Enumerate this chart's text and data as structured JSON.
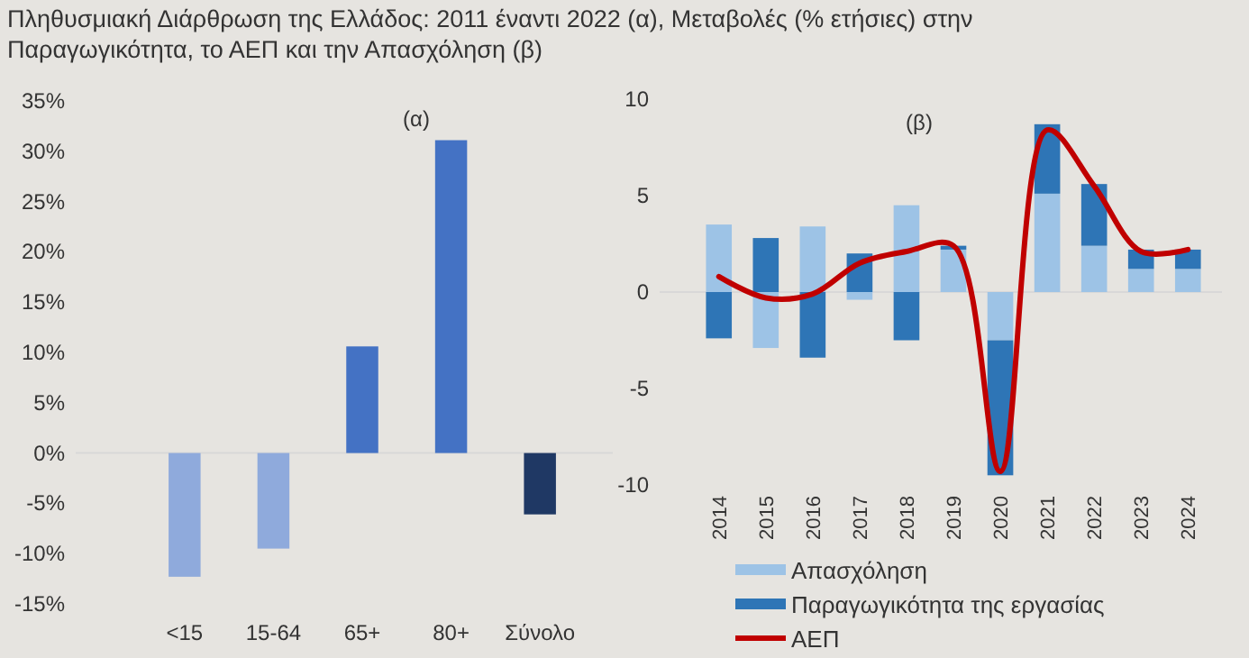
{
  "chart_data": [
    {
      "type": "bar",
      "title": "Πληθυσμιακή Διάρθρωση της Ελλάδος: 2011  έναντι 2022 (α), Μεταβολές (% ετήσιες) στην Παραγωγικότητα, το ΑΕΠ και την Απασχόληση (β)",
      "annotations": [
        "(α)"
      ],
      "categories": [
        "<15",
        "15-64",
        "65+",
        "80+",
        "Σύνολο"
      ],
      "values": [
        -12.3,
        -9.5,
        10.6,
        31.1,
        -6.1
      ],
      "colors": [
        "#8faadc",
        "#8faadc",
        "#4472c4",
        "#4472c4",
        "#1f3864"
      ],
      "ylim": [
        -15,
        35
      ],
      "yticks": [
        {
          "value": -15,
          "label": "-15%"
        },
        {
          "value": -10,
          "label": "-10%"
        },
        {
          "value": -5,
          "label": "-5%"
        },
        {
          "value": 0,
          "label": "0%"
        },
        {
          "value": 5,
          "label": "5%"
        },
        {
          "value": 10,
          "label": "10%"
        },
        {
          "value": 15,
          "label": "15%"
        },
        {
          "value": 20,
          "label": "20%"
        },
        {
          "value": 25,
          "label": "25%"
        },
        {
          "value": 30,
          "label": "30%"
        },
        {
          "value": 35,
          "label": "35%"
        }
      ],
      "legend": false
    },
    {
      "type": "bar",
      "stacked": true,
      "annotations": [
        "(β)"
      ],
      "categories": [
        "2014",
        "2015",
        "2016",
        "2017",
        "2018",
        "2019",
        "2020",
        "2021",
        "2022",
        "2023",
        "2024"
      ],
      "series": [
        {
          "name": "Απασχόληση",
          "color": "#9dc3e6",
          "values": [
            3.5,
            -2.9,
            3.4,
            -0.4,
            4.5,
            2.2,
            -2.5,
            5.1,
            2.4,
            1.2,
            1.2
          ]
        },
        {
          "name": "Παραγωγικότητα της εργασίας",
          "color": "#2e75b6",
          "values": [
            -2.4,
            2.8,
            -3.4,
            2.0,
            -2.5,
            0.2,
            -7.0,
            3.6,
            3.2,
            1.0,
            1.0
          ]
        },
        {
          "name": "ΑΕΠ",
          "type": "line",
          "color": "#c00000",
          "values": [
            0.8,
            -0.3,
            -0.1,
            1.5,
            2.1,
            2.4,
            -9.3,
            8.4,
            5.5,
            2.1,
            2.2
          ]
        }
      ],
      "ylim": [
        -10,
        10
      ],
      "yticks": [
        -10,
        -5,
        0,
        5,
        10
      ],
      "legend": "bottom"
    }
  ]
}
